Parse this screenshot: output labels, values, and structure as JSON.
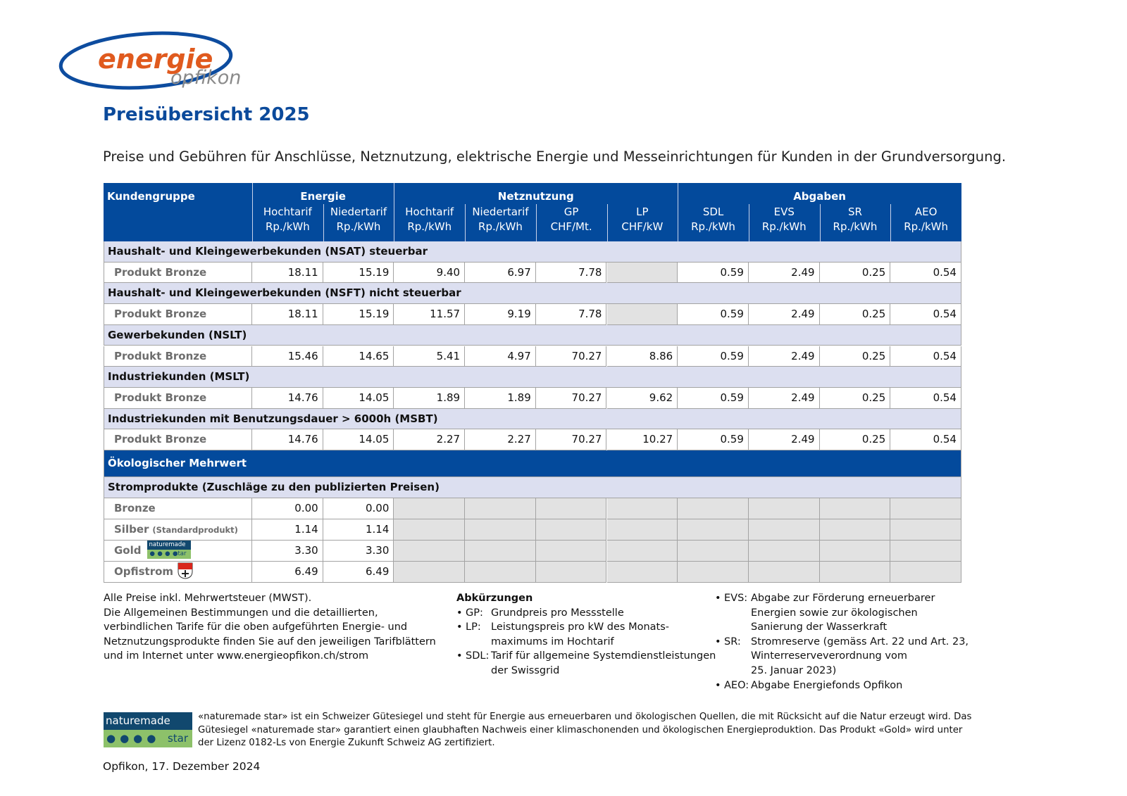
{
  "header": {
    "logo": {
      "word1": "energie",
      "word2": "opfikon"
    },
    "title": "Preisübersicht 2025",
    "subtitle": "Preise und Gebühren für Anschlüsse, Netznutzung, elektrische Energie und Messeinrichtungen für Kunden in der Grundversorgung."
  },
  "table": {
    "first_header": "Kundengruppe",
    "groups": [
      {
        "name": "Energie",
        "columns": [
          {
            "name": "Hochtarif",
            "unit": "Rp./kWh"
          },
          {
            "name": "Niedertarif",
            "unit": "Rp./kWh"
          }
        ]
      },
      {
        "name": "Netznutzung",
        "columns": [
          {
            "name": "Hochtarif",
            "unit": "Rp./kWh"
          },
          {
            "name": "Niedertarif",
            "unit": "Rp./kWh"
          },
          {
            "name": "GP",
            "unit": "CHF/Mt."
          },
          {
            "name": "LP",
            "unit": "CHF/kW"
          }
        ]
      },
      {
        "name": "Abgaben",
        "columns": [
          {
            "name": "SDL",
            "unit": "Rp./kWh"
          },
          {
            "name": "EVS",
            "unit": "Rp./kWh"
          },
          {
            "name": "SR",
            "unit": "Rp./kWh"
          },
          {
            "name": "AEO",
            "unit": "Rp./kWh"
          }
        ]
      }
    ],
    "sections": [
      {
        "title": "Haushalt- und Kleingewerbekunden (NSAT) steuerbar",
        "rows": [
          {
            "label": "Produkt Bronze",
            "values": [
              "18.11",
              "15.19",
              "9.40",
              "6.97",
              "7.78",
              null,
              "0.59",
              "2.49",
              "0.25",
              "0.54"
            ]
          }
        ]
      },
      {
        "title": "Haushalt- und Kleingewerbekunden (NSFT) nicht steuerbar",
        "rows": [
          {
            "label": "Produkt Bronze",
            "values": [
              "18.11",
              "15.19",
              "11.57",
              "9.19",
              "7.78",
              null,
              "0.59",
              "2.49",
              "0.25",
              "0.54"
            ]
          }
        ]
      },
      {
        "title": "Gewerbekunden (NSLT)",
        "rows": [
          {
            "label": "Produkt Bronze",
            "values": [
              "15.46",
              "14.65",
              "5.41",
              "4.97",
              "70.27",
              "8.86",
              "0.59",
              "2.49",
              "0.25",
              "0.54"
            ]
          }
        ]
      },
      {
        "title": "Industriekunden (MSLT)",
        "rows": [
          {
            "label": "Produkt Bronze",
            "values": [
              "14.76",
              "14.05",
              "1.89",
              "1.89",
              "70.27",
              "9.62",
              "0.59",
              "2.49",
              "0.25",
              "0.54"
            ]
          }
        ]
      },
      {
        "title": "Industriekunden mit Benutzungsdauer > 6000h (MSBT)",
        "rows": [
          {
            "label": "Produkt Bronze",
            "values": [
              "14.76",
              "14.05",
              "2.27",
              "2.27",
              "70.27",
              "10.27",
              "0.59",
              "2.49",
              "0.25",
              "0.54"
            ]
          }
        ]
      }
    ],
    "eco": {
      "title": "Ökologischer Mehrwert",
      "subtitle": "Stromprodukte (Zuschläge zu den publizierten Preisen)",
      "rows": [
        {
          "label": "Bronze",
          "values": [
            "0.00",
            "0.00"
          ]
        },
        {
          "label": "Silber",
          "note": "(Standardprodukt)",
          "values": [
            "1.14",
            "1.14"
          ]
        },
        {
          "label": "Gold",
          "badge": [
            "naturemade",
            "star"
          ],
          "values": [
            "3.30",
            "3.30"
          ]
        },
        {
          "label": "Opfistrom",
          "values": [
            "6.49",
            "6.49"
          ]
        }
      ]
    }
  },
  "footer": {
    "notes": [
      "Alle Preise inkl. Mehrwertsteuer (MWST).",
      "Die Allgemeinen Bestimmungen und die detaillierten,",
      "verbindlichen Tarife für die oben aufgeführten Energie- und",
      "Netznutzungsprodukte finden Sie auf den jeweiligen Tarifblättern",
      "und im Internet unter www.energieopfikon.ch/strom"
    ],
    "abbreviations": {
      "title": "Abkürzungen",
      "items": [
        {
          "abbr": "GP:",
          "lines": [
            "Grundpreis pro Messstelle"
          ]
        },
        {
          "abbr": "LP:",
          "lines": [
            "Leistungspreis pro kW des Monats-",
            "maximums im Hochtarif"
          ]
        },
        {
          "abbr": "SDL:",
          "lines": [
            "Tarif für allgemeine Systemdienstleistungen",
            "der Swissgrid"
          ]
        },
        {
          "abbr": "EVS:",
          "lines": [
            "Abgabe zur Förderung erneuerbarer",
            "Energien sowie zur ökologischen",
            "Sanierung der Wasserkraft"
          ]
        },
        {
          "abbr": "SR:",
          "lines": [
            "Stromreserve (gemäss Art. 22 und Art. 23,",
            "Winterreserveverordnung vom",
            "25. Januar 2023)"
          ]
        },
        {
          "abbr": "AEO:",
          "lines": [
            "Abgabe Energiefonds Opfikon"
          ]
        }
      ]
    },
    "naturemade": {
      "badge": [
        "naturemade",
        "star"
      ],
      "lines": [
        "«naturemade star» ist ein Schweizer Gütesiegel und steht für Energie aus erneuerbaren und ökologischen Quellen, die mit Rücksicht auf die Natur erzeugt wird. Das",
        "Gütesiegel «naturemade star» garantiert einen glaubhaften Nachweis einer klimaschonenden und ökologischen Energieproduktion. Das Produkt «Gold» wird unter",
        "der Lizenz 0182-Ls von Energie Zukunft Schweiz AG zertifiziert."
      ]
    },
    "date": "Opfikon, 17. Dezember 2024"
  }
}
